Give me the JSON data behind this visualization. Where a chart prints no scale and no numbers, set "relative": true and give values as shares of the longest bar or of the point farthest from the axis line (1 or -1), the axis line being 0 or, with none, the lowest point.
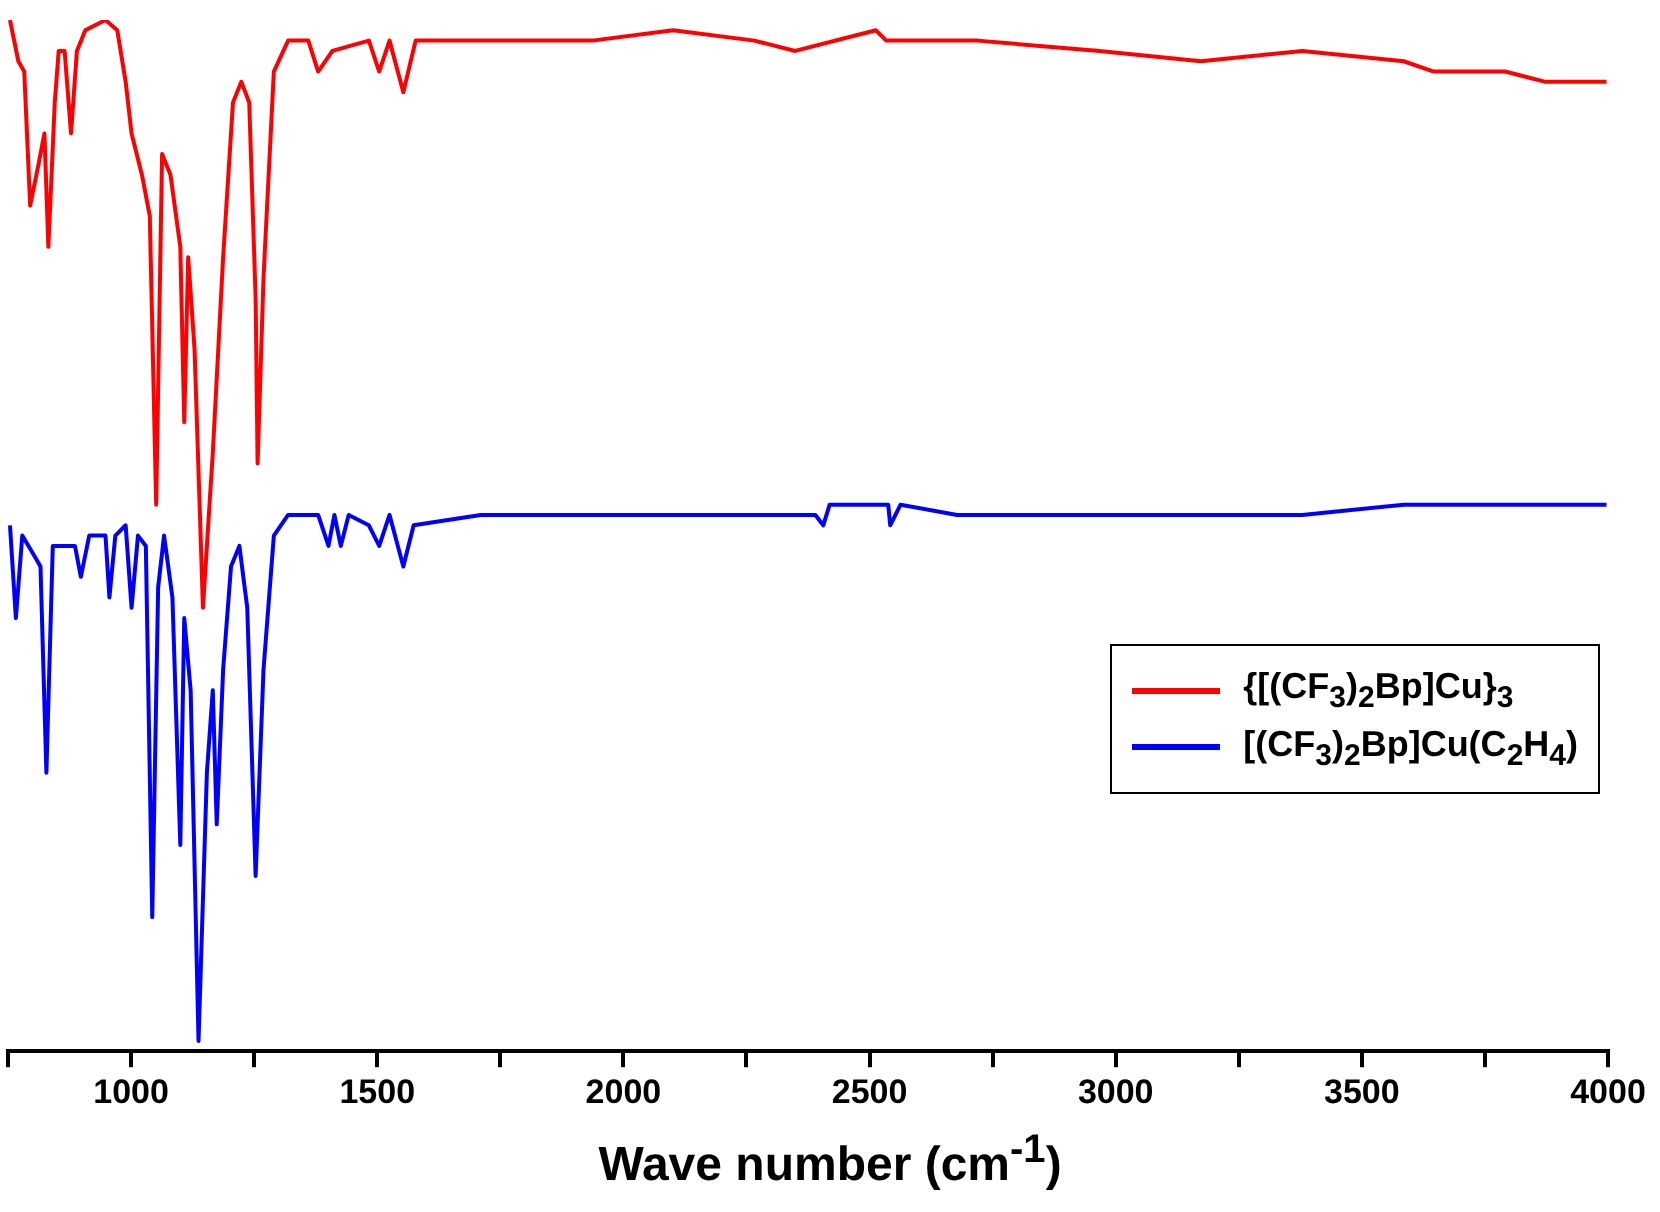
{
  "chart_data": {
    "type": "line",
    "relative": true,
    "xlabel": "Wave number (cm$^{-1}$)",
    "xlim": [
      750,
      4000
    ],
    "xticks": [
      {
        "value": 750,
        "label": null
      },
      1000,
      {
        "value": 1250,
        "label": null
      },
      1500,
      {
        "value": 1750,
        "label": null
      },
      2000,
      {
        "value": 2250,
        "label": null
      },
      2500,
      {
        "value": 2750,
        "label": null
      },
      3000,
      {
        "value": 3250,
        "label": null
      },
      3500,
      {
        "value": 3750,
        "label": null
      },
      4000
    ],
    "legend": "right",
    "grid": false,
    "marker": "none",
    "line_style": "solid",
    "tick_labels": "x",
    "series": [
      {
        "name": "{[(CF$_{3}$)$_{2}$Bp]Cu}$_{3}$",
        "color": "#ff0000",
        "x": [
          754,
          771,
          783,
          795,
          812,
          824,
          832,
          845,
          853,
          865,
          878,
          890,
          907,
          948,
          972,
          989,
          1001,
          1022,
          1038,
          1051,
          1063,
          1080,
          1100,
          1108,
          1116,
          1129,
          1146,
          1166,
          1187,
          1207,
          1224,
          1240,
          1253,
          1257,
          1269,
          1290,
          1319,
          1360,
          1380,
          1409,
          1483,
          1504,
          1525,
          1553,
          1578,
          1689,
          1937,
          2101,
          2266,
          2349,
          2513,
          2534,
          2719,
          2967,
          3173,
          3379,
          3585,
          3646,
          3791,
          3873,
          3997
        ],
        "values": [
          1.0,
          0.96,
          0.95,
          0.82,
          0.86,
          0.89,
          0.78,
          0.92,
          0.97,
          0.97,
          0.89,
          0.97,
          0.99,
          1.0,
          0.99,
          0.94,
          0.89,
          0.85,
          0.81,
          0.53,
          0.87,
          0.85,
          0.78,
          0.61,
          0.77,
          0.68,
          0.43,
          0.58,
          0.77,
          0.92,
          0.94,
          0.92,
          0.73,
          0.57,
          0.75,
          0.95,
          0.98,
          0.98,
          0.95,
          0.97,
          0.98,
          0.95,
          0.98,
          0.93,
          0.98,
          0.98,
          0.98,
          0.99,
          0.98,
          0.97,
          0.99,
          0.98,
          0.98,
          0.97,
          0.96,
          0.97,
          0.96,
          0.95,
          0.95,
          0.94,
          0.94
        ]
      },
      {
        "name": "[(CF$_{3}$)$_{2}$Bp]Cu(C$_{2}$H$_{4}$)",
        "color": "#0000ff",
        "x": [
          754,
          766,
          779,
          804,
          816,
          828,
          841,
          865,
          886,
          898,
          915,
          948,
          956,
          968,
          989,
          1001,
          1014,
          1030,
          1043,
          1055,
          1067,
          1084,
          1100,
          1108,
          1121,
          1137,
          1154,
          1166,
          1174,
          1187,
          1203,
          1220,
          1236,
          1253,
          1269,
          1290,
          1319,
          1380,
          1401,
          1413,
          1426,
          1442,
          1483,
          1504,
          1525,
          1553,
          1574,
          1710,
          1937,
          2266,
          2390,
          2406,
          2419,
          2538,
          2542,
          2563,
          2678,
          2925,
          3173,
          3379,
          3585,
          3832,
          3997
        ],
        "values": [
          0.51,
          0.42,
          0.5,
          0.48,
          0.47,
          0.27,
          0.49,
          0.49,
          0.49,
          0.46,
          0.5,
          0.5,
          0.44,
          0.5,
          0.51,
          0.43,
          0.5,
          0.49,
          0.13,
          0.45,
          0.5,
          0.44,
          0.2,
          0.42,
          0.35,
          0.01,
          0.27,
          0.35,
          0.22,
          0.37,
          0.47,
          0.49,
          0.43,
          0.17,
          0.37,
          0.5,
          0.52,
          0.52,
          0.49,
          0.52,
          0.49,
          0.52,
          0.51,
          0.49,
          0.52,
          0.47,
          0.51,
          0.52,
          0.52,
          0.52,
          0.52,
          0.51,
          0.53,
          0.53,
          0.51,
          0.53,
          0.52,
          0.52,
          0.52,
          0.52,
          0.53,
          0.53,
          0.53
        ]
      }
    ]
  }
}
